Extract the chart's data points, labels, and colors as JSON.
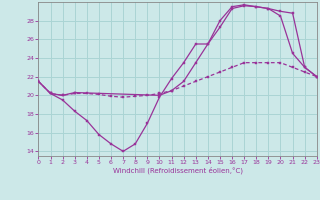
{
  "xlabel": "Windchill (Refroidissement éolien,°C)",
  "bg_color": "#cce8e8",
  "line_color": "#993399",
  "grid_color": "#aad4d4",
  "xlim": [
    0,
    23
  ],
  "ylim": [
    13.5,
    30.0
  ],
  "yticks": [
    14,
    16,
    18,
    20,
    22,
    24,
    26,
    28
  ],
  "xticks": [
    0,
    1,
    2,
    3,
    4,
    5,
    6,
    7,
    8,
    9,
    10,
    11,
    12,
    13,
    14,
    15,
    16,
    17,
    18,
    19,
    20,
    21,
    22,
    23
  ],
  "line1_x": [
    0,
    1,
    2,
    3,
    4,
    5,
    6,
    7,
    8,
    9,
    10,
    11,
    12,
    13,
    14,
    15,
    16,
    17,
    18,
    19,
    20,
    21,
    22,
    23
  ],
  "line1_y": [
    21.5,
    20.2,
    19.5,
    18.3,
    17.3,
    15.8,
    14.8,
    14.0,
    14.8,
    17.0,
    19.8,
    21.8,
    23.5,
    25.5,
    25.5,
    27.3,
    29.3,
    29.6,
    29.5,
    29.3,
    28.5,
    24.5,
    23.0,
    22.0
  ],
  "line2_x": [
    0,
    1,
    2,
    3,
    4,
    5,
    6,
    7,
    8,
    9,
    10,
    11,
    12,
    13,
    14,
    15,
    16,
    17,
    18,
    19,
    20,
    21,
    22,
    23
  ],
  "line2_y": [
    21.5,
    20.2,
    20.0,
    20.2,
    20.2,
    20.1,
    19.9,
    19.8,
    19.9,
    20.0,
    20.2,
    20.5,
    21.0,
    21.5,
    22.0,
    22.5,
    23.0,
    23.5,
    23.5,
    23.5,
    23.5,
    23.0,
    22.5,
    22.0
  ],
  "line3_x": [
    0,
    1,
    2,
    3,
    10,
    11,
    12,
    13,
    14,
    15,
    16,
    17,
    18,
    19,
    20,
    21,
    22,
    23
  ],
  "line3_y": [
    21.5,
    20.2,
    20.0,
    20.3,
    20.0,
    20.5,
    21.5,
    23.5,
    25.5,
    28.0,
    29.5,
    29.7,
    29.5,
    29.3,
    29.0,
    28.8,
    23.0,
    22.0
  ]
}
